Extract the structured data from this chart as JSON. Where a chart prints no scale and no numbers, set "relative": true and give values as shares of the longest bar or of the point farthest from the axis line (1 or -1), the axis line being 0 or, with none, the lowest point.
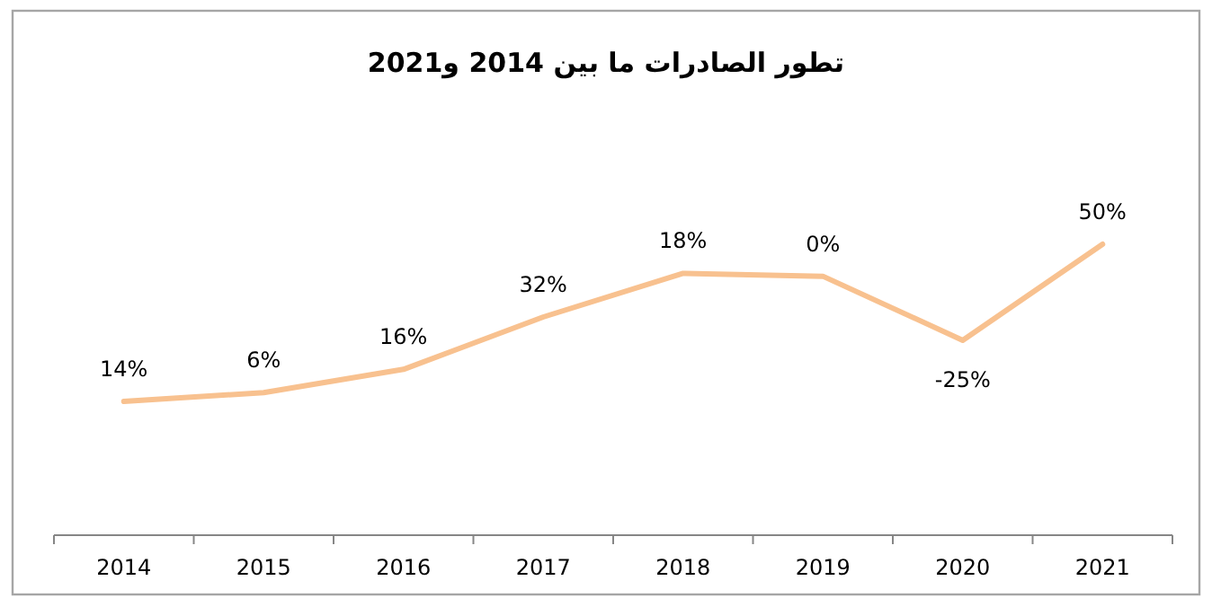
{
  "chart_data": {
    "type": "line",
    "relative": true,
    "title": "تطور الصادرات ما بين 2014 و2021",
    "categories": [
      "2014",
      "2015",
      "2016",
      "2017",
      "2018",
      "2019",
      "2020",
      "2021"
    ],
    "series": [
      {
        "color": "#f8c18f",
        "values": [
          0.46,
          0.49,
          0.57,
          0.75,
          0.9,
          0.89,
          0.67,
          1
        ]
      }
    ],
    "annotations": [
      {
        "text": "14%",
        "x": "2014",
        "y": 0.46
      },
      {
        "text": "6%",
        "x": "2015",
        "y": 0.49
      },
      {
        "text": "16%",
        "x": "2016",
        "y": 0.57
      },
      {
        "text": "32%",
        "x": "2017",
        "y": 0.75
      },
      {
        "text": "18%",
        "x": "2018",
        "y": 0.9
      },
      {
        "text": "0%",
        "x": "2019",
        "y": 0.89
      },
      {
        "text": "-25%",
        "x": "2020",
        "y": 0.67
      },
      {
        "text": "50%",
        "x": "2021",
        "y": 1
      }
    ],
    "marker": "none",
    "line_style": "solid"
  }
}
